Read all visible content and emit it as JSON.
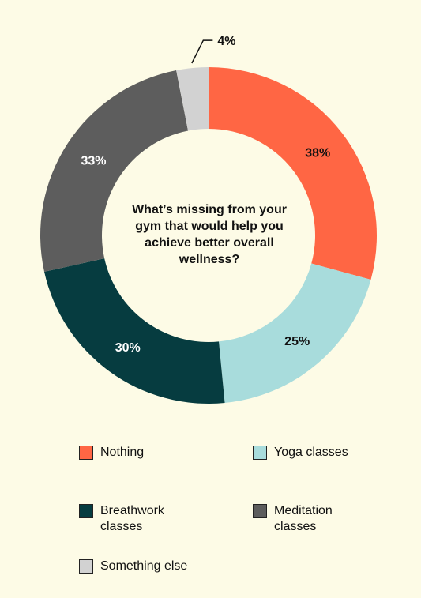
{
  "chart_data": {
    "type": "donut",
    "center_text": "What’s missing from your gym that would help you achieve better overall wellness?",
    "slices": [
      {
        "label": "Nothing",
        "value": 38,
        "display": "38%",
        "color": "#ff6644"
      },
      {
        "label": "Yoga classes",
        "value": 25,
        "display": "25%",
        "color": "#a8dcdc"
      },
      {
        "label": "Breathwork classes",
        "value": 30,
        "display": "30%",
        "color": "#063c40"
      },
      {
        "label": "Meditation classes",
        "value": 33,
        "display": "33%",
        "color": "#5d5d5d"
      },
      {
        "label": "Something else",
        "value": 4,
        "display": "4%",
        "color": "#d2d2d2"
      }
    ],
    "legend_placement": "bottom"
  },
  "legend": {
    "nothing": "Nothing",
    "yoga": "Yoga classes",
    "breathwork": "Breathwork\nclasses",
    "meditation": "Meditation\nclasses",
    "something": "Something else"
  },
  "colors": {
    "background": "#fdfbe6"
  }
}
